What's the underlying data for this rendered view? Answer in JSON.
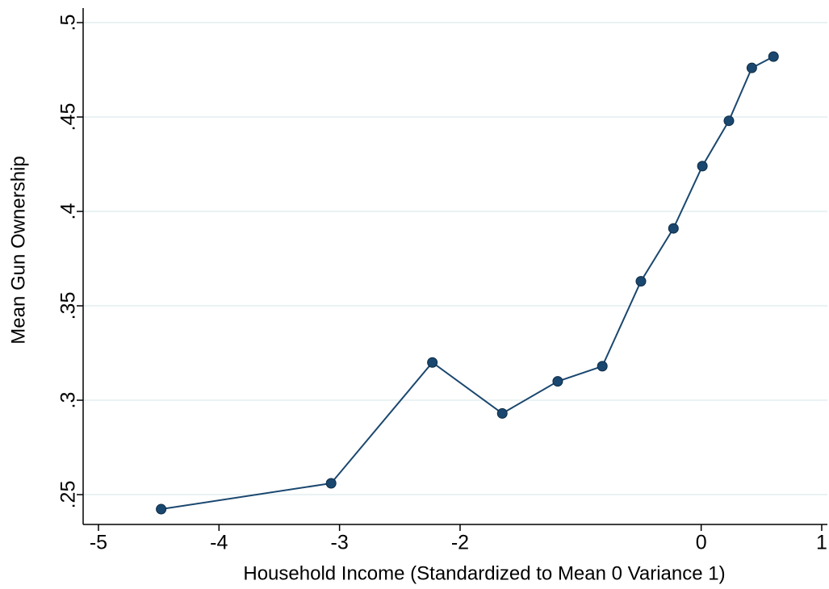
{
  "chart_data": {
    "type": "line",
    "x_label": "Household Income (Standardized to Mean 0 Variance 1)",
    "y_label": "Mean Gun Ownership",
    "x": [
      -4.48,
      -3.07,
      -2.23,
      -1.65,
      -1.19,
      -0.82,
      -0.5,
      -0.23,
      0.01,
      0.23,
      0.42,
      0.6
    ],
    "series": [
      {
        "color": "#1a476f",
        "values": [
          0.2423,
          0.256,
          0.32,
          0.293,
          0.31,
          0.318,
          0.363,
          0.391,
          0.424,
          0.448,
          0.476,
          0.482
        ]
      }
    ],
    "xlim": [
      -5.127,
      1.047
    ],
    "ylim": [
      0.2342,
      0.5077
    ],
    "xticks": [
      -5,
      -4,
      -3,
      -2,
      0,
      1
    ],
    "yticks": [
      {
        "value": 0.25,
        "label": ".25"
      },
      {
        "value": 0.3,
        "label": ".3"
      },
      {
        "value": 0.35,
        "label": ".35"
      },
      {
        "value": 0.4,
        "label": ".4"
      },
      {
        "value": 0.45,
        "label": ".45"
      },
      {
        "value": 0.5,
        "label": ".5"
      }
    ],
    "grid": true
  }
}
